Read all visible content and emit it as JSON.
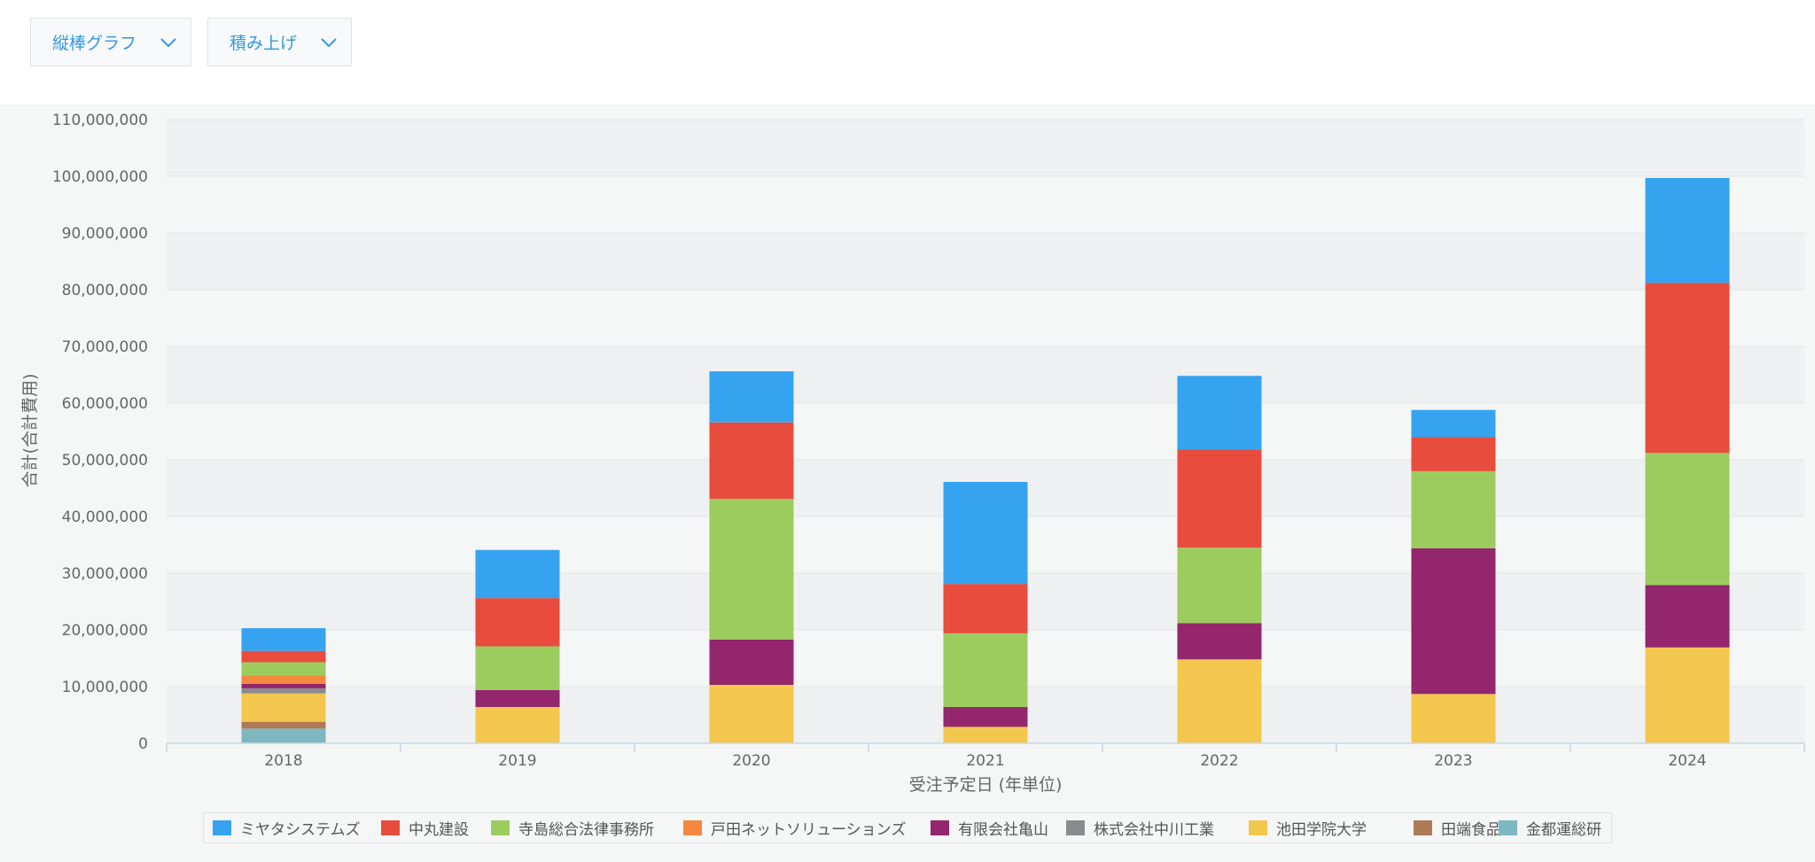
{
  "toolbar": {
    "chart_type": {
      "label": "縦棒グラフ",
      "icon": "chevron-down-icon"
    },
    "stack_mode": {
      "label": "積み上げ",
      "icon": "chevron-down-icon"
    },
    "accent_color": "#3498db"
  },
  "chart_data": {
    "type": "bar",
    "stacked": true,
    "xlabel": "受注予定日 (年単位)",
    "ylabel": "合計(合計費用)",
    "categories": [
      "2018",
      "2019",
      "2020",
      "2021",
      "2022",
      "2023",
      "2024"
    ],
    "ylim": [
      0,
      110000000
    ],
    "yticks": [
      "0",
      "10,000,000",
      "20,000,000",
      "30,000,000",
      "40,000,000",
      "50,000,000",
      "60,000,000",
      "70,000,000",
      "80,000,000",
      "90,000,000",
      "100,000,000",
      "110,000,000"
    ],
    "grid": true,
    "legend_position": "bottom",
    "series": [
      {
        "name": "ミヤタシステムズ",
        "color": "#35a3f0",
        "values": [
          4000000,
          8500000,
          9000000,
          18000000,
          13000000,
          4800000,
          18500000
        ]
      },
      {
        "name": "中丸建設",
        "color": "#e74c3c",
        "values": [
          2000000,
          8500000,
          13500000,
          8700000,
          17300000,
          6000000,
          30000000
        ]
      },
      {
        "name": "寺島総合法律事務所",
        "color": "#9ccc5e",
        "values": [
          2300000,
          7700000,
          24800000,
          13000000,
          13300000,
          13600000,
          23300000
        ]
      },
      {
        "name": "戸田ネットソリューションズ",
        "color": "#f5883f",
        "values": [
          1500000,
          0,
          0,
          0,
          0,
          0,
          0
        ]
      },
      {
        "name": "有限会社亀山",
        "color": "#93266d",
        "values": [
          800000,
          3000000,
          8000000,
          3500000,
          6400000,
          25700000,
          11000000
        ]
      },
      {
        "name": "株式会社中川工業",
        "color": "#898b8e",
        "values": [
          900000,
          0,
          0,
          0,
          0,
          0,
          0
        ]
      },
      {
        "name": "池田学院大学",
        "color": "#f3c74d",
        "values": [
          5000000,
          6400000,
          10300000,
          2900000,
          14800000,
          8700000,
          16900000
        ]
      },
      {
        "name": "田端食品",
        "color": "#b07a56",
        "values": [
          1200000,
          0,
          0,
          0,
          0,
          0,
          0
        ]
      },
      {
        "name": "金都運総研",
        "color": "#7db8c1",
        "values": [
          2600000,
          0,
          0,
          0,
          0,
          0,
          0
        ]
      }
    ]
  }
}
